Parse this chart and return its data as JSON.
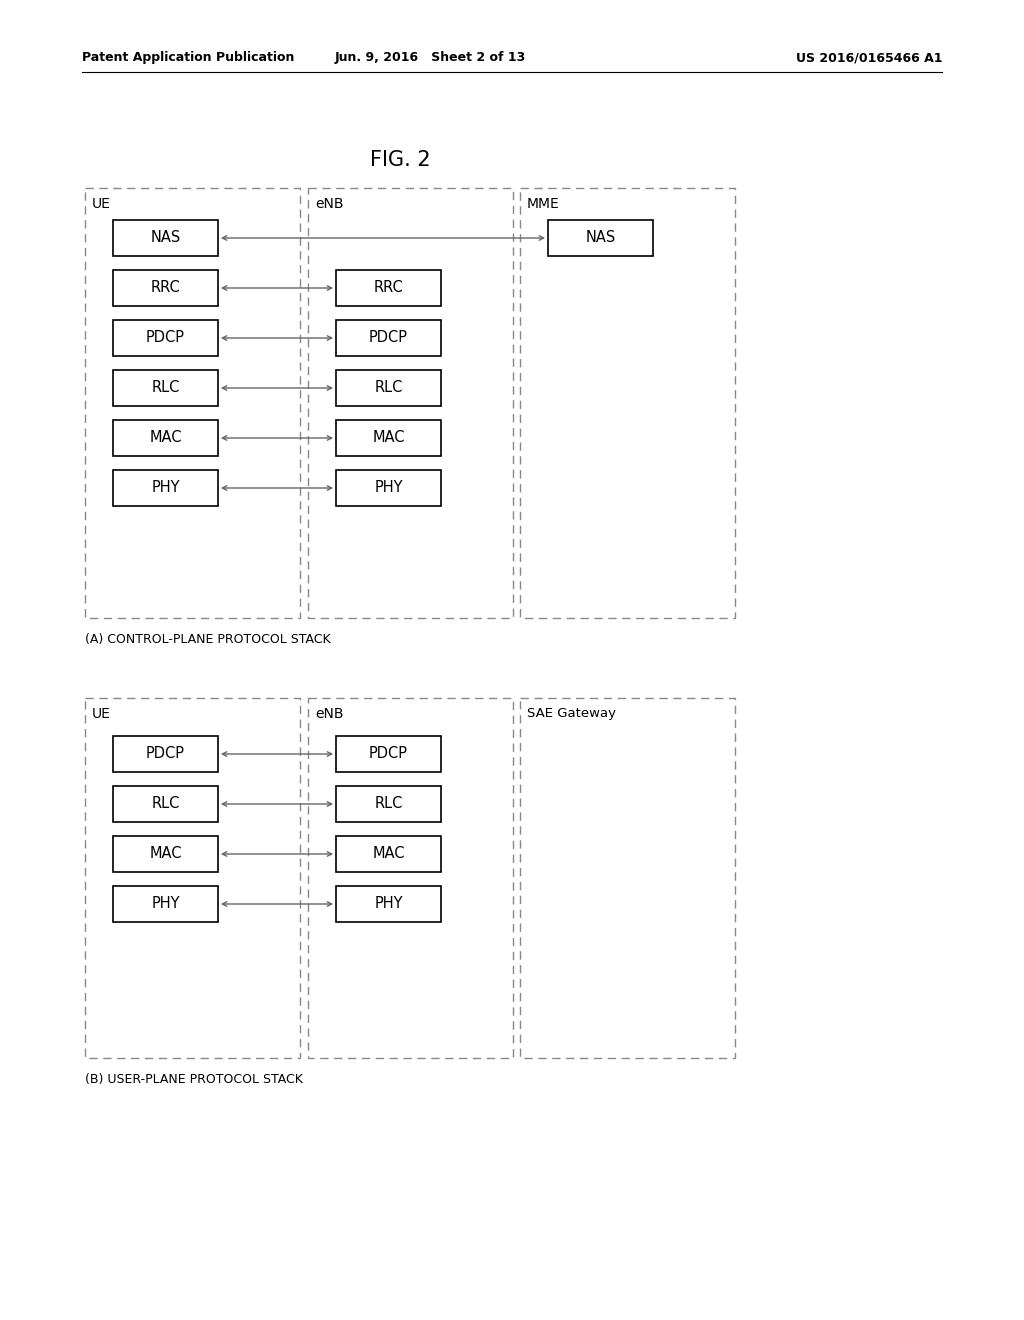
{
  "bg_color": "#ffffff",
  "fig_title": "FIG. 2",
  "header_left": "Patent Application Publication",
  "header_center": "Jun. 9, 2016   Sheet 2 of 13",
  "header_right": "US 2016/0165466 A1",
  "diagram_A_label": "(A) CONTROL-PLANE PROTOCOL STACK",
  "diagram_B_label": "(B) USER-PLANE PROTOCOL STACK",
  "control_plane": {
    "UE_label": "UE",
    "eNB_label": "eNB",
    "MME_label": "MME",
    "UE_boxes": [
      "NAS",
      "RRC",
      "PDCP",
      "RLC",
      "MAC",
      "PHY"
    ],
    "eNB_boxes": [
      "RRC",
      "PDCP",
      "RLC",
      "MAC",
      "PHY"
    ],
    "MME_boxes": [
      "NAS"
    ]
  },
  "user_plane": {
    "UE_label": "UE",
    "eNB_label": "eNB",
    "SAE_label": "SAE Gateway",
    "UE_boxes": [
      "PDCP",
      "RLC",
      "MAC",
      "PHY"
    ],
    "eNB_boxes": [
      "PDCP",
      "RLC",
      "MAC",
      "PHY"
    ]
  },
  "box_color": "#ffffff",
  "box_edge_color": "#000000",
  "line_color": "#666666",
  "text_color": "#000000",
  "dash_color": "#888888"
}
